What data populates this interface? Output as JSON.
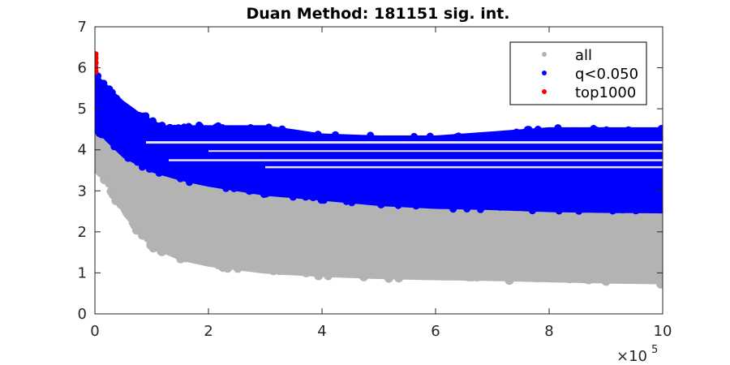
{
  "chart_data": {
    "type": "scatter",
    "title": "Duan Method: 181151 sig. int.",
    "xlabel": "",
    "ylabel": "",
    "x_exponent_label": "×10",
    "x_exponent_power": "5",
    "xlim": [
      0,
      10
    ],
    "ylim": [
      0,
      7
    ],
    "x_ticks": [
      "0",
      "2",
      "4",
      "6",
      "8",
      "10"
    ],
    "y_ticks": [
      "0",
      "1",
      "2",
      "3",
      "4",
      "5",
      "6",
      "7"
    ],
    "grid": false,
    "legend_position": "top-right",
    "series": [
      {
        "name": "all",
        "color": "#b3b3b3",
        "lower_envelope": [
          [
            0,
            3.6
          ],
          [
            0.2,
            3.2
          ],
          [
            0.5,
            2.4
          ],
          [
            1.0,
            1.6
          ],
          [
            1.5,
            1.3
          ],
          [
            2.0,
            1.15
          ],
          [
            3.0,
            0.98
          ],
          [
            4.0,
            0.9
          ],
          [
            5.0,
            0.85
          ],
          [
            6.0,
            0.82
          ],
          [
            7.0,
            0.8
          ],
          [
            8.0,
            0.77
          ],
          [
            9.0,
            0.74
          ],
          [
            10.0,
            0.72
          ]
        ]
      },
      {
        "name": "q<0.050",
        "color": "#0000ff",
        "lower_envelope": [
          [
            0,
            4.5
          ],
          [
            0.2,
            4.2
          ],
          [
            0.5,
            3.8
          ],
          [
            1.0,
            3.45
          ],
          [
            1.5,
            3.25
          ],
          [
            2.0,
            3.1
          ],
          [
            3.0,
            2.88
          ],
          [
            4.0,
            2.76
          ],
          [
            5.0,
            2.63
          ],
          [
            6.0,
            2.56
          ],
          [
            7.0,
            2.53
          ],
          [
            8.0,
            2.48
          ],
          [
            9.0,
            2.46
          ],
          [
            10.0,
            2.45
          ]
        ],
        "upper_envelope": [
          [
            0,
            5.9
          ],
          [
            0.2,
            5.6
          ],
          [
            0.5,
            5.2
          ],
          [
            0.8,
            4.9
          ],
          [
            1.2,
            4.6
          ],
          [
            2.0,
            4.6
          ],
          [
            3.0,
            4.6
          ],
          [
            4.0,
            4.4
          ],
          [
            5.0,
            4.35
          ],
          [
            6.0,
            4.35
          ],
          [
            7.0,
            4.45
          ],
          [
            8.0,
            4.55
          ],
          [
            9.0,
            4.55
          ],
          [
            10.0,
            4.55
          ]
        ]
      },
      {
        "name": "top1000",
        "color": "#ff0000",
        "points_range": {
          "x": [
            0,
            0.02
          ],
          "y": [
            5.85,
            6.35
          ]
        }
      }
    ]
  }
}
